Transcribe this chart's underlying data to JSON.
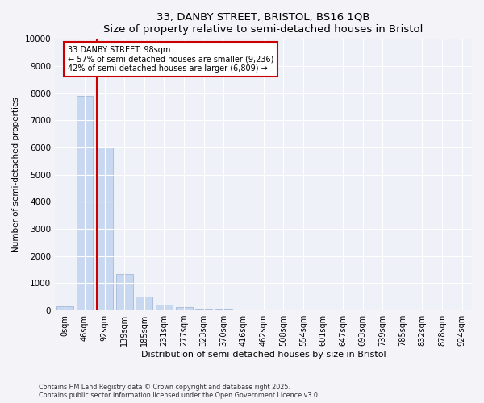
{
  "title1": "33, DANBY STREET, BRISTOL, BS16 1QB",
  "title2": "Size of property relative to semi-detached houses in Bristol",
  "xlabel": "Distribution of semi-detached houses by size in Bristol",
  "ylabel": "Number of semi-detached properties",
  "categories": [
    "0sqm",
    "46sqm",
    "92sqm",
    "139sqm",
    "185sqm",
    "231sqm",
    "277sqm",
    "323sqm",
    "370sqm",
    "416sqm",
    "462sqm",
    "508sqm",
    "554sqm",
    "601sqm",
    "647sqm",
    "693sqm",
    "739sqm",
    "785sqm",
    "832sqm",
    "878sqm",
    "924sqm"
  ],
  "values": [
    150,
    7900,
    6000,
    1350,
    500,
    220,
    130,
    70,
    50,
    5,
    3,
    1,
    0,
    0,
    0,
    0,
    0,
    0,
    0,
    0,
    0
  ],
  "bar_color": "#c8d8f0",
  "bar_edge_color": "#9ab0d0",
  "property_label": "33 DANBY STREET: 98sqm",
  "smaller_pct": 57,
  "smaller_count": "9,236",
  "larger_pct": 42,
  "larger_count": "6,809",
  "vline_color": "#cc0000",
  "box_edge_color": "#cc0000",
  "ylim": [
    0,
    10000
  ],
  "yticks": [
    0,
    1000,
    2000,
    3000,
    4000,
    5000,
    6000,
    7000,
    8000,
    9000,
    10000
  ],
  "footnote1": "Contains HM Land Registry data © Crown copyright and database right 2025.",
  "footnote2": "Contains public sector information licensed under the Open Government Licence v3.0.",
  "fig_bg_color": "#f4f4f8",
  "plot_bg_color": "#eef2f8"
}
